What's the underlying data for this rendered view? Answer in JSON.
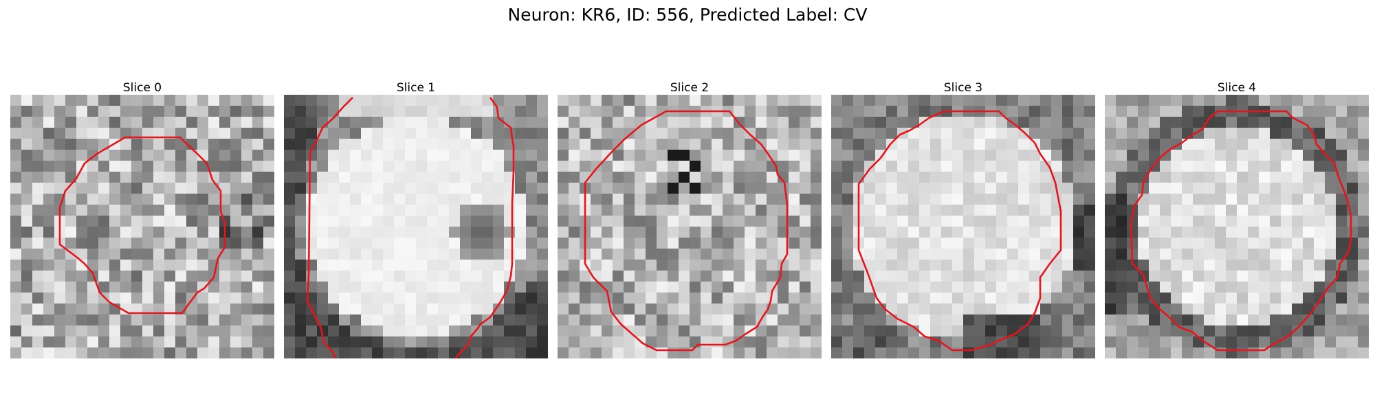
{
  "figure": {
    "title": "Neuron: KR6, ID: 556, Predicted Label: CV",
    "slices": [
      {
        "label": "Slice 0",
        "texture": "noisy",
        "contour": "closed"
      },
      {
        "label": "Slice 1",
        "texture": "bright-blob",
        "contour": "open-sides"
      },
      {
        "label": "Slice 2",
        "texture": "noisy-mid",
        "contour": "closed"
      },
      {
        "label": "Slice 3",
        "texture": "bright-body-dark-bottom",
        "contour": "closed"
      },
      {
        "label": "Slice 4",
        "texture": "bright-body-dark-ring",
        "contour": "closed"
      }
    ],
    "contour_color": "#e8141b"
  }
}
